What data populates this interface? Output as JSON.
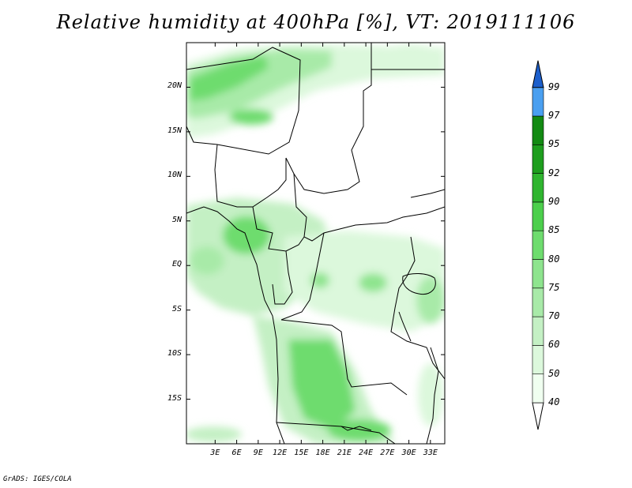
{
  "title": "Relative humidity at 400hPa [%], VT: 2019111106",
  "credit": "GrADS: IGES/COLA",
  "map": {
    "lon_range": [
      -1,
      35
    ],
    "lat_range": [
      -20,
      25
    ],
    "lat_ticks": [
      {
        "value": 20,
        "label": "20N"
      },
      {
        "value": 15,
        "label": "15N"
      },
      {
        "value": 10,
        "label": "10N"
      },
      {
        "value": 5,
        "label": "5N"
      },
      {
        "value": 0,
        "label": "EQ"
      },
      {
        "value": -5,
        "label": "5S"
      },
      {
        "value": -10,
        "label": "10S"
      },
      {
        "value": -15,
        "label": "15S"
      }
    ],
    "lon_ticks": [
      {
        "value": 3,
        "label": "3E"
      },
      {
        "value": 6,
        "label": "6E"
      },
      {
        "value": 9,
        "label": "9E"
      },
      {
        "value": 12,
        "label": "12E"
      },
      {
        "value": 15,
        "label": "15E"
      },
      {
        "value": 18,
        "label": "18E"
      },
      {
        "value": 21,
        "label": "21E"
      },
      {
        "value": 24,
        "label": "24E"
      },
      {
        "value": 27,
        "label": "27E"
      },
      {
        "value": 30,
        "label": "30E"
      },
      {
        "value": 33,
        "label": "33E"
      }
    ]
  },
  "colorbar": {
    "levels": [
      {
        "label": "40",
        "color": "#f0fff0"
      },
      {
        "label": "50",
        "color": "#dcf8dc"
      },
      {
        "label": "60",
        "color": "#c4f0c4"
      },
      {
        "label": "70",
        "color": "#a8eaa8"
      },
      {
        "label": "75",
        "color": "#8ee48e"
      },
      {
        "label": "80",
        "color": "#6edc6e"
      },
      {
        "label": "85",
        "color": "#4ccf4c"
      },
      {
        "label": "90",
        "color": "#2fb52f"
      },
      {
        "label": "92",
        "color": "#1e9e1e"
      },
      {
        "label": "95",
        "color": "#138a13"
      },
      {
        "label": "97",
        "color": "#4a9ff0"
      },
      {
        "label": "99",
        "color": "#2979e0"
      }
    ],
    "top_color": "#1c5fcc"
  }
}
